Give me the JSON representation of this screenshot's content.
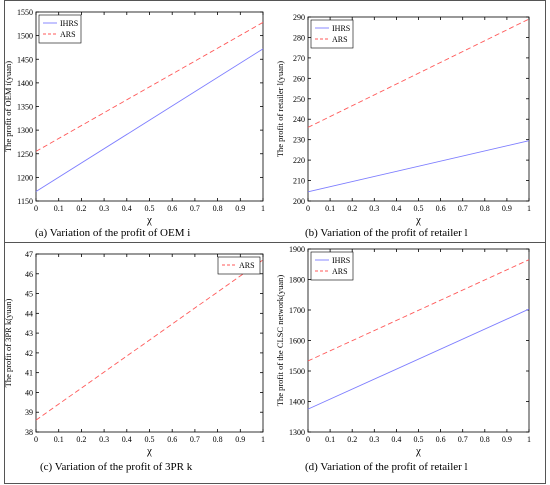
{
  "colors": {
    "ihrs": "#7d7dff",
    "ars": "#ff5a5a",
    "axis": "#000000",
    "border": "#555555"
  },
  "captions": [
    "(a)   Variation of the profit of OEM i",
    "(b)   Variation of the profit of retailer l",
    "(c)    Variation of the profit of 3PR k",
    "(d)    Variation of the profit of retailer l"
  ],
  "chart_data": [
    {
      "type": "line",
      "ylabel": "The profit of OEM i(yuan)",
      "xlabel": "χ",
      "xlim": [
        0,
        1
      ],
      "ylim": [
        1150,
        1550
      ],
      "xticks": [
        "0",
        "0.1",
        "0.2",
        "0.3",
        "0.4",
        "0.5",
        "0.6",
        "0.7",
        "0.8",
        "0.9",
        "1"
      ],
      "yticks": [
        "1150",
        "1200",
        "1250",
        "1300",
        "1350",
        "1400",
        "1450",
        "1500",
        "1550"
      ],
      "legend": "top-left",
      "series": [
        {
          "name": "IHRS",
          "style": "solid",
          "x": [
            0,
            1
          ],
          "values": [
            1170,
            1472
          ]
        },
        {
          "name": "ARS",
          "style": "dashed",
          "x": [
            0,
            1
          ],
          "values": [
            1255,
            1528
          ]
        }
      ]
    },
    {
      "type": "line",
      "ylabel": "The profit of retailer l(yuan)",
      "xlabel": "χ",
      "xlim": [
        0,
        1
      ],
      "ylim": [
        200,
        290
      ],
      "xticks": [
        "0",
        "0.1",
        "0.2",
        "0.3",
        "0.4",
        "0.5",
        "0.6",
        "0.7",
        "0.8",
        "0.9",
        "1"
      ],
      "yticks": [
        "200",
        "210",
        "220",
        "230",
        "240",
        "250",
        "260",
        "270",
        "280",
        "290"
      ],
      "legend": "top-left",
      "series": [
        {
          "name": "IHRS",
          "style": "solid",
          "x": [
            0,
            1
          ],
          "values": [
            204.5,
            229.5
          ]
        },
        {
          "name": "ARS",
          "style": "dashed",
          "x": [
            0,
            1
          ],
          "values": [
            236,
            289
          ]
        }
      ]
    },
    {
      "type": "line",
      "ylabel": "The profit of 3PR k(yuan)",
      "xlabel": "χ",
      "xlim": [
        0,
        1
      ],
      "ylim": [
        38,
        47
      ],
      "xticks": [
        "0",
        "0.1",
        "0.2",
        "0.3",
        "0.4",
        "0.5",
        "0.6",
        "0.7",
        "0.8",
        "0.9",
        "1"
      ],
      "yticks": [
        "38",
        "39",
        "40",
        "41",
        "42",
        "43",
        "44",
        "45",
        "46",
        "47"
      ],
      "legend": "top-right",
      "series": [
        {
          "name": "ARS",
          "style": "dashed",
          "x": [
            0,
            1
          ],
          "values": [
            38.6,
            46.7
          ]
        }
      ]
    },
    {
      "type": "line",
      "ylabel": "The profit of the CLSC network(yuan)",
      "xlabel": "χ",
      "xlim": [
        0,
        1
      ],
      "ylim": [
        1300,
        1900
      ],
      "xticks": [
        "0",
        "0.1",
        "0.2",
        "0.3",
        "0.4",
        "0.5",
        "0.6",
        "0.7",
        "0.8",
        "0.9",
        "1"
      ],
      "yticks": [
        "1300",
        "1400",
        "1500",
        "1600",
        "1700",
        "1800",
        "1900"
      ],
      "legend": "top-left",
      "series": [
        {
          "name": "IHRS",
          "style": "solid",
          "x": [
            0,
            1
          ],
          "values": [
            1375,
            1703
          ]
        },
        {
          "name": "ARS",
          "style": "dashed",
          "x": [
            0,
            1
          ],
          "values": [
            1533,
            1865
          ]
        }
      ]
    }
  ]
}
